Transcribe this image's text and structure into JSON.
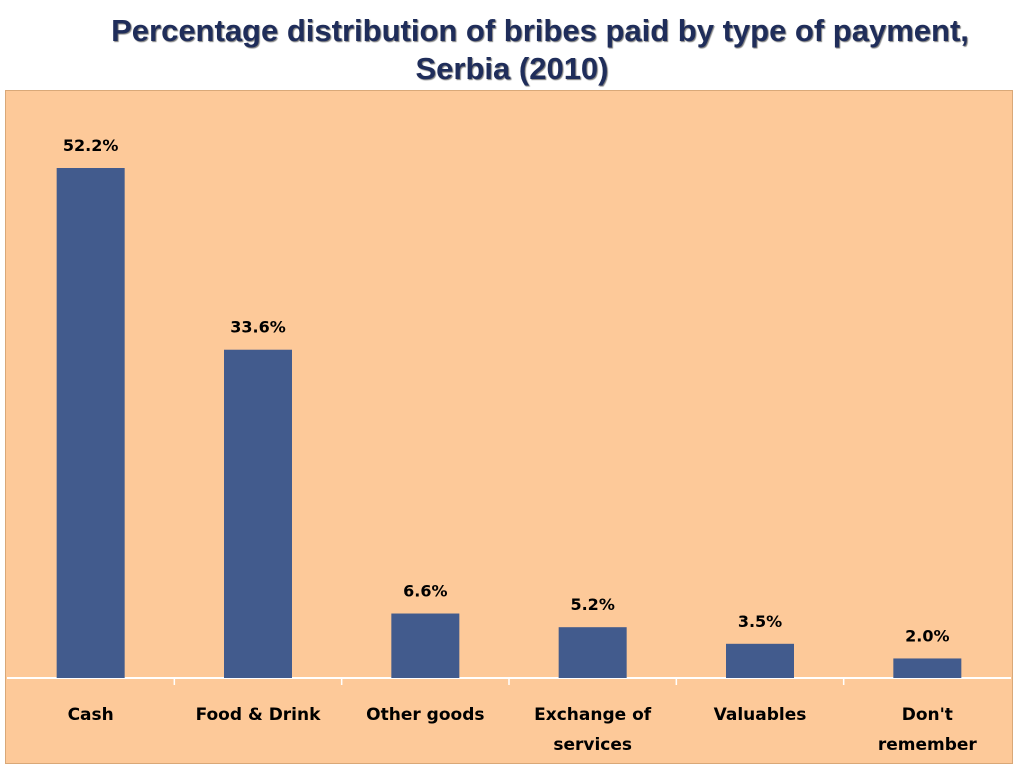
{
  "chart_data": {
    "type": "bar",
    "title": "Percentage distribution of bribes paid by type of payment, Serbia (2010)",
    "title_lines": [
      "Percentage distribution of bribes paid by type of payment,",
      "Serbia (2010)"
    ],
    "categories": [
      [
        "Cash"
      ],
      [
        "Food & Drink"
      ],
      [
        "Other goods"
      ],
      [
        "Exchange of",
        "services"
      ],
      [
        "Valuables"
      ],
      [
        "Don't",
        "remember"
      ]
    ],
    "values": [
      52.2,
      33.6,
      6.6,
      5.2,
      3.5,
      2.0
    ],
    "value_labels": [
      "52.2%",
      "33.6%",
      "6.6%",
      "5.2%",
      "3.5%",
      "2.0%"
    ],
    "ylim": [
      0,
      52.2
    ],
    "grid": false,
    "colors": {
      "bar": "#425b8d",
      "background": "#fdc999",
      "title": "#1f2d5a"
    }
  }
}
